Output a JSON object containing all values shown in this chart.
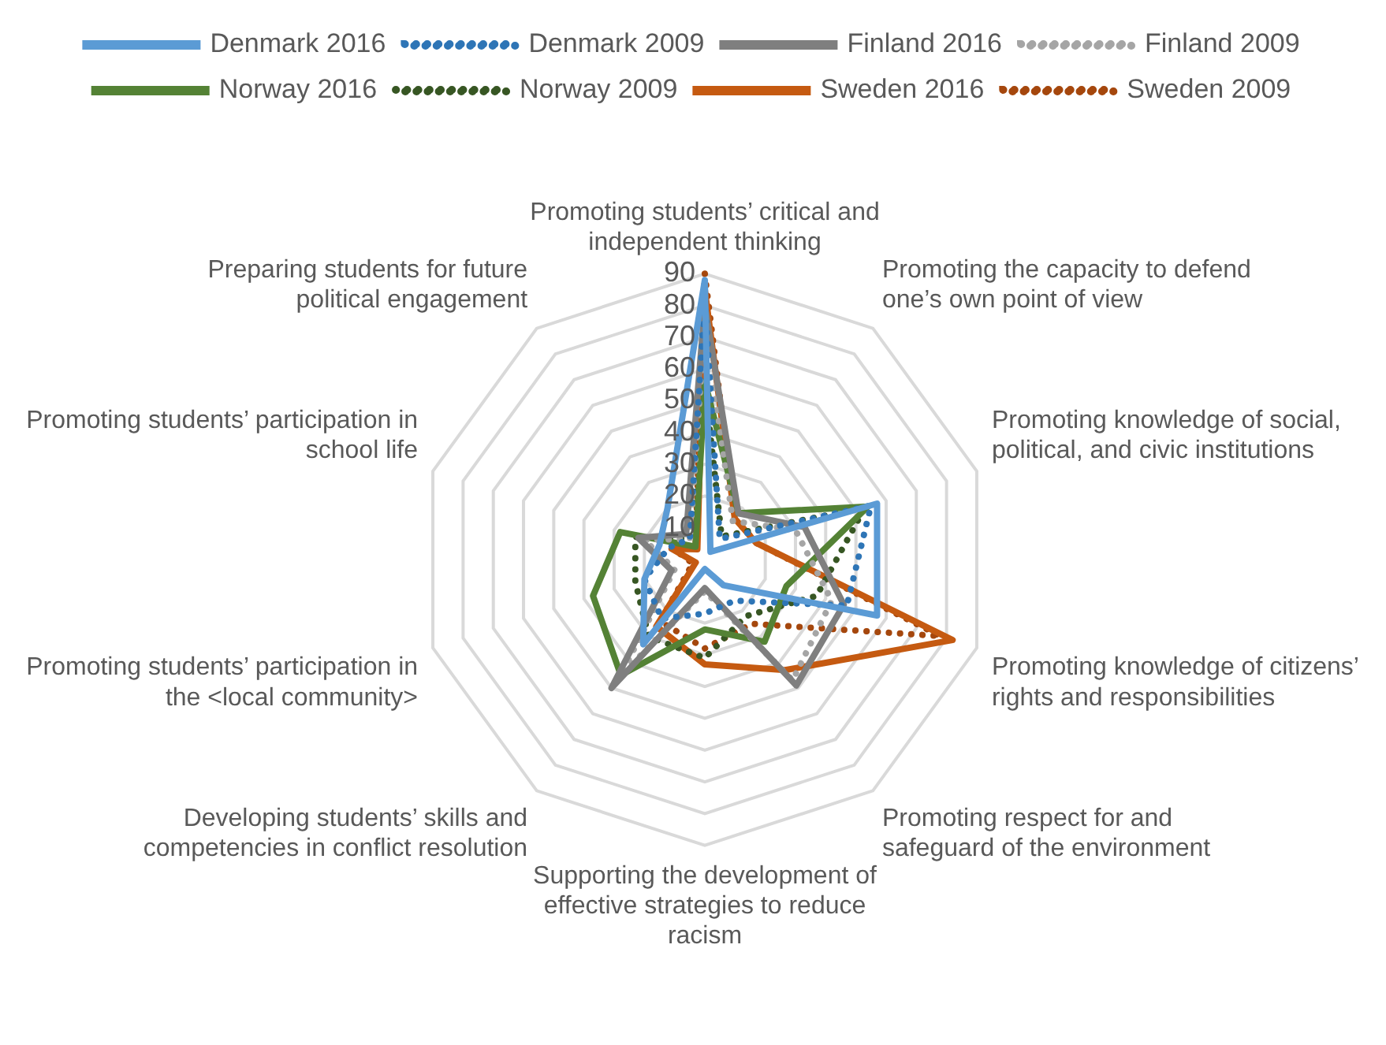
{
  "chart_data": {
    "type": "radar",
    "categories": [
      "Promoting students’ critical and independent thinking",
      "Promoting the capacity to defend one’s own point of view",
      "Promoting knowledge of social, political, and civic institutions",
      "Promoting knowledge of citizens’ rights and responsibilities",
      "Promoting respect for and safeguard of the environment",
      "Supporting the development of effective strategies to reduce racism",
      "Developing students’ skills and competencies in conflict resolution",
      "Promoting students’ participation in the <local community>",
      "Promoting students’ participation in school life",
      "Preparing students for future political engagement"
    ],
    "series": [
      {
        "name": "Denmark 2016",
        "color": "#5b9bd5",
        "line_style": "solid",
        "values": [
          88,
          3,
          57,
          57,
          10,
          3,
          33,
          20,
          15,
          20
        ]
      },
      {
        "name": "Denmark 2009",
        "color": "#2e75b6",
        "line_style": "dotted",
        "values": [
          82,
          8,
          55,
          47,
          16,
          17,
          23,
          20,
          12,
          8
        ]
      },
      {
        "name": "Finland 2016",
        "color": "#7f7f7f",
        "line_style": "solid",
        "values": [
          80,
          18,
          33,
          46,
          49,
          9,
          50,
          11,
          22,
          10
        ]
      },
      {
        "name": "Finland 2009",
        "color": "#a5a5a5",
        "line_style": "dotted",
        "values": [
          75,
          15,
          30,
          42,
          47,
          10,
          45,
          10,
          20,
          8
        ]
      },
      {
        "name": "Norway 2016",
        "color": "#548235",
        "line_style": "solid",
        "values": [
          56,
          18,
          54,
          27,
          32,
          22,
          45,
          37,
          28,
          5
        ]
      },
      {
        "name": "Norway 2009",
        "color": "#375623",
        "line_style": "dotted",
        "values": [
          55,
          9,
          53,
          37,
          22,
          31,
          30,
          23,
          23,
          8
        ]
      },
      {
        "name": "Sweden 2016",
        "color": "#c55a11",
        "line_style": "solid",
        "values": [
          85,
          16,
          17,
          82,
          43,
          33,
          26,
          3,
          11,
          4
        ]
      },
      {
        "name": "Sweden 2009",
        "color": "#a5470d",
        "line_style": "dotted",
        "values": [
          90,
          16,
          17,
          78,
          25,
          28,
          24,
          4,
          10,
          5
        ]
      }
    ],
    "ylim": [
      0,
      90
    ],
    "yticks": [
      10,
      20,
      30,
      40,
      50,
      60,
      70,
      80,
      90
    ],
    "grid": true,
    "legend": "top",
    "marker": "none"
  }
}
